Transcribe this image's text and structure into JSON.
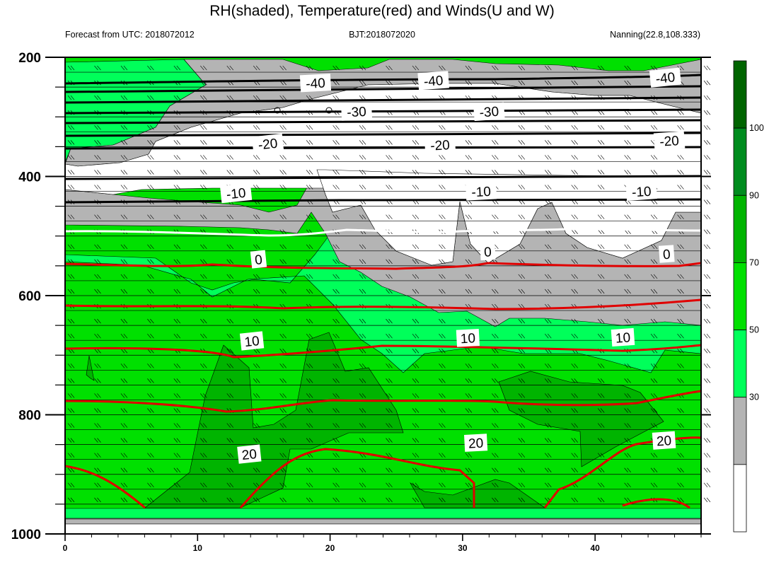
{
  "chart_data": {
    "type": "contour",
    "title": "RH(shaded), Temperature(red) and Winds(U and W)",
    "left_string": "Forecast from UTC: 2018072012",
    "center_string": "BJT:2018072020",
    "right_string": "Nanning(22.8,108.333)",
    "x_range": [
      0,
      48
    ],
    "x_ticks": [
      0,
      10,
      20,
      30,
      40
    ],
    "y_range": [
      200,
      1000
    ],
    "y_ticks": [
      200,
      400,
      600,
      800,
      1000
    ],
    "colorbar": {
      "levels": [
        30,
        50,
        70,
        90,
        100
      ],
      "colors": [
        "#ffffff",
        "#b4b4b4",
        "#00ff5a",
        "#00e000",
        "#00b400",
        "#008c1e",
        "#006400"
      ]
    },
    "temperature_contours": [
      {
        "value": -40,
        "label": "-40",
        "pressure": 240,
        "color": "#000000"
      },
      {
        "value": -30,
        "label": "-30",
        "pressure": 290,
        "color": "#000000"
      },
      {
        "value": -20,
        "label": "-20",
        "pressure": 347,
        "color": "#000000"
      },
      {
        "value": -10,
        "label": "-10",
        "pressure": 427,
        "color": "#000000"
      },
      {
        "value": 0,
        "label": "0",
        "pressure": 533,
        "color": "#ffffff"
      },
      {
        "value": 10,
        "label": "10",
        "pressure": 675,
        "color": "#e00000"
      },
      {
        "value": 20,
        "label": "20",
        "pressure": 848,
        "color": "#e00000"
      }
    ]
  }
}
